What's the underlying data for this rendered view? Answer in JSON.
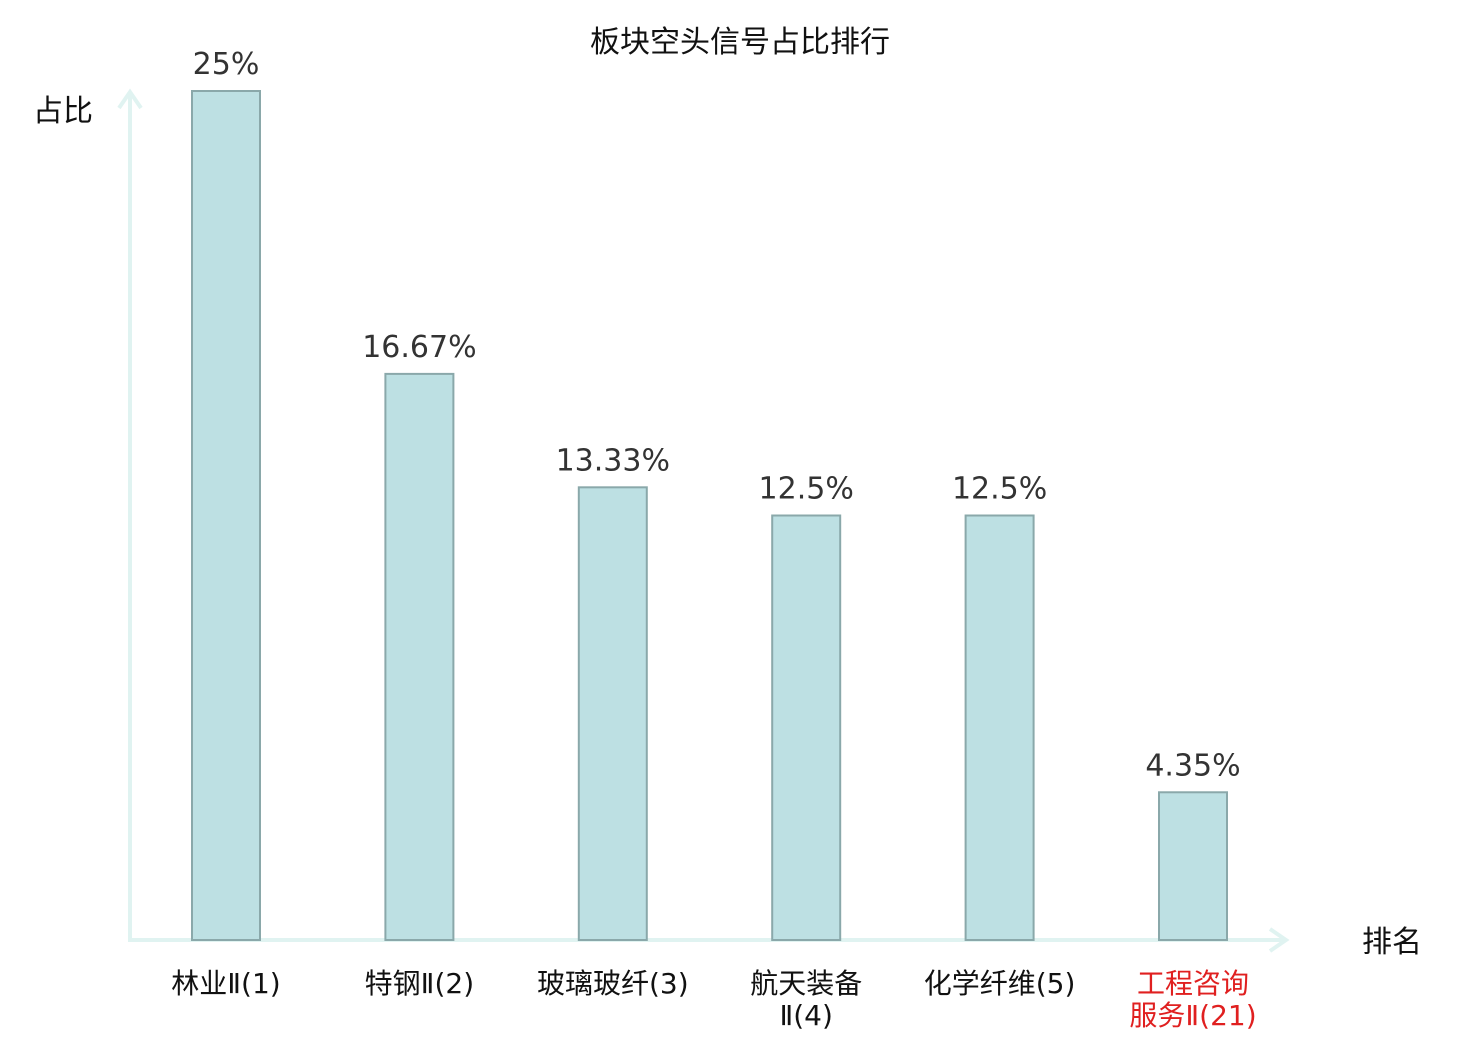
{
  "chart_data": {
    "type": "bar",
    "title": "板块空头信号占比排行",
    "ylabel": "占比",
    "xlabel": "排名",
    "ylim": [
      0,
      25
    ],
    "grid": false,
    "categories": [
      [
        "林业Ⅱ(1)"
      ],
      [
        "特钢Ⅱ(2)"
      ],
      [
        "玻璃玻纤(3)"
      ],
      [
        "航天装备",
        "Ⅱ(4)"
      ],
      [
        "化学纤维(5)"
      ],
      [
        "工程咨询",
        "服务Ⅱ(21)"
      ]
    ],
    "values": [
      25,
      16.67,
      13.33,
      12.5,
      12.5,
      4.35
    ],
    "value_labels": [
      "25%",
      "16.67%",
      "13.33%",
      "12.5%",
      "12.5%",
      "4.35%"
    ],
    "highlight_index": 5
  },
  "colors": {
    "bar_fill": "#bde0e3",
    "bar_stroke": "#8aa8aa",
    "axis": "#e0f3f1",
    "label": "#111111",
    "highlight": "#e02020"
  }
}
